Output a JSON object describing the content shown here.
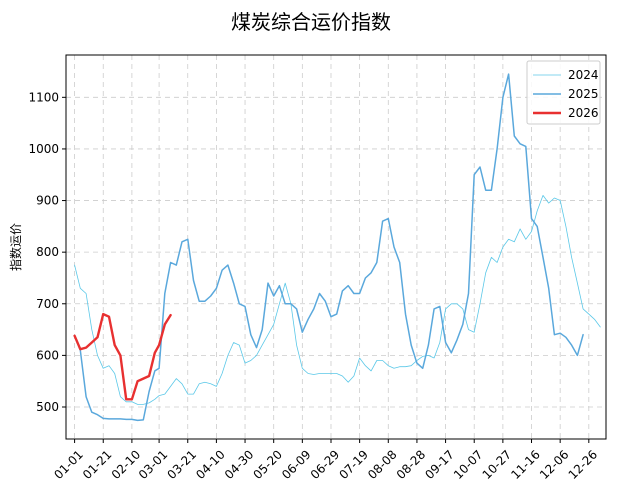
{
  "chart_data": {
    "type": "line",
    "title": "煤炭综合运价指数",
    "xlabel": "",
    "ylabel": "指数运价",
    "x_ticks": [
      "01-01",
      "01-21",
      "02-10",
      "03-01",
      "03-21",
      "04-10",
      "04-30",
      "05-20",
      "06-09",
      "06-29",
      "07-19",
      "08-08",
      "08-28",
      "09-17",
      "10-07",
      "10-27",
      "11-16",
      "12-06",
      "12-26"
    ],
    "y_ticks": [
      500,
      600,
      700,
      800,
      900,
      1000,
      1100
    ],
    "ylim": [
      438,
      1182
    ],
    "xlim_days": [
      -6,
      371
    ],
    "grid": true,
    "legend_position": "top-right",
    "colors": {
      "2024": "#5bc8e8",
      "2025": "#5aa8dc",
      "2026": "#e83030"
    },
    "series": [
      {
        "name": "2024",
        "points": [
          [
            "01-01",
            775
          ],
          [
            "01-05",
            730
          ],
          [
            "01-09",
            720
          ],
          [
            "01-13",
            650
          ],
          [
            "01-17",
            600
          ],
          [
            "01-21",
            575
          ],
          [
            "01-25",
            580
          ],
          [
            "01-29",
            565
          ],
          [
            "02-02",
            520
          ],
          [
            "02-06",
            510
          ],
          [
            "02-10",
            510
          ],
          [
            "02-14",
            505
          ],
          [
            "02-18",
            505
          ],
          [
            "02-22",
            508
          ],
          [
            "02-26",
            515
          ],
          [
            "03-01",
            522
          ],
          [
            "03-05",
            525
          ],
          [
            "03-09",
            540
          ],
          [
            "03-13",
            555
          ],
          [
            "03-17",
            545
          ],
          [
            "03-21",
            525
          ],
          [
            "03-25",
            525
          ],
          [
            "03-29",
            545
          ],
          [
            "04-02",
            548
          ],
          [
            "04-06",
            545
          ],
          [
            "04-10",
            540
          ],
          [
            "04-14",
            565
          ],
          [
            "04-18",
            600
          ],
          [
            "04-22",
            625
          ],
          [
            "04-26",
            620
          ],
          [
            "04-30",
            585
          ],
          [
            "05-04",
            590
          ],
          [
            "05-08",
            600
          ],
          [
            "05-12",
            620
          ],
          [
            "05-16",
            640
          ],
          [
            "05-20",
            660
          ],
          [
            "05-24",
            700
          ],
          [
            "05-28",
            740
          ],
          [
            "06-01",
            700
          ],
          [
            "06-05",
            620
          ],
          [
            "06-09",
            575
          ],
          [
            "06-13",
            565
          ],
          [
            "06-17",
            563
          ],
          [
            "06-21",
            565
          ],
          [
            "06-25",
            565
          ],
          [
            "06-29",
            565
          ],
          [
            "07-03",
            565
          ],
          [
            "07-07",
            560
          ],
          [
            "07-11",
            548
          ],
          [
            "07-15",
            560
          ],
          [
            "07-19",
            595
          ],
          [
            "07-23",
            580
          ],
          [
            "07-27",
            570
          ],
          [
            "07-31",
            590
          ],
          [
            "08-04",
            590
          ],
          [
            "08-08",
            580
          ],
          [
            "08-12",
            575
          ],
          [
            "08-16",
            578
          ],
          [
            "08-20",
            578
          ],
          [
            "08-24",
            580
          ],
          [
            "08-28",
            590
          ],
          [
            "09-01",
            598
          ],
          [
            "09-05",
            600
          ],
          [
            "09-09",
            595
          ],
          [
            "09-13",
            625
          ],
          [
            "09-17",
            690
          ],
          [
            "09-21",
            700
          ],
          [
            "09-25",
            700
          ],
          [
            "09-29",
            690
          ],
          [
            "10-03",
            650
          ],
          [
            "10-07",
            645
          ],
          [
            "10-11",
            700
          ],
          [
            "10-15",
            760
          ],
          [
            "10-19",
            790
          ],
          [
            "10-23",
            780
          ],
          [
            "10-27",
            810
          ],
          [
            "10-31",
            825
          ],
          [
            "11-04",
            820
          ],
          [
            "11-08",
            845
          ],
          [
            "11-12",
            825
          ],
          [
            "11-16",
            840
          ],
          [
            "11-20",
            880
          ],
          [
            "11-24",
            910
          ],
          [
            "11-28",
            895
          ],
          [
            "12-02",
            905
          ],
          [
            "12-06",
            900
          ],
          [
            "12-10",
            850
          ],
          [
            "12-14",
            790
          ],
          [
            "12-18",
            740
          ],
          [
            "12-22",
            690
          ],
          [
            "12-26",
            680
          ],
          [
            "12-30",
            670
          ],
          [
            "01-03",
            655
          ]
        ]
      },
      {
        "name": "2025",
        "points": [
          [
            "01-01",
            638
          ],
          [
            "01-05",
            610
          ],
          [
            "01-09",
            520
          ],
          [
            "01-13",
            490
          ],
          [
            "01-17",
            485
          ],
          [
            "01-21",
            478
          ],
          [
            "01-25",
            477
          ],
          [
            "01-29",
            477
          ],
          [
            "02-02",
            477
          ],
          [
            "02-06",
            476
          ],
          [
            "02-10",
            476
          ],
          [
            "02-14",
            474
          ],
          [
            "02-18",
            475
          ],
          [
            "02-22",
            530
          ],
          [
            "02-26",
            570
          ],
          [
            "03-01",
            575
          ],
          [
            "03-05",
            720
          ],
          [
            "03-09",
            780
          ],
          [
            "03-13",
            775
          ],
          [
            "03-17",
            820
          ],
          [
            "03-21",
            825
          ],
          [
            "03-25",
            745
          ],
          [
            "03-29",
            705
          ],
          [
            "04-02",
            705
          ],
          [
            "04-06",
            715
          ],
          [
            "04-10",
            730
          ],
          [
            "04-14",
            765
          ],
          [
            "04-18",
            775
          ],
          [
            "04-22",
            740
          ],
          [
            "04-26",
            700
          ],
          [
            "04-30",
            695
          ],
          [
            "05-04",
            640
          ],
          [
            "05-08",
            615
          ],
          [
            "05-12",
            650
          ],
          [
            "05-16",
            740
          ],
          [
            "05-20",
            715
          ],
          [
            "05-24",
            735
          ],
          [
            "05-28",
            700
          ],
          [
            "06-01",
            700
          ],
          [
            "06-05",
            690
          ],
          [
            "06-09",
            645
          ],
          [
            "06-13",
            670
          ],
          [
            "06-17",
            690
          ],
          [
            "06-21",
            720
          ],
          [
            "06-25",
            705
          ],
          [
            "06-29",
            675
          ],
          [
            "07-03",
            680
          ],
          [
            "07-07",
            725
          ],
          [
            "07-11",
            735
          ],
          [
            "07-15",
            720
          ],
          [
            "07-19",
            720
          ],
          [
            "07-23",
            750
          ],
          [
            "07-27",
            760
          ],
          [
            "07-31",
            780
          ],
          [
            "08-04",
            860
          ],
          [
            "08-08",
            865
          ],
          [
            "08-12",
            810
          ],
          [
            "08-16",
            780
          ],
          [
            "08-20",
            680
          ],
          [
            "08-24",
            620
          ],
          [
            "08-28",
            585
          ],
          [
            "09-01",
            575
          ],
          [
            "09-05",
            620
          ],
          [
            "09-09",
            690
          ],
          [
            "09-13",
            695
          ],
          [
            "09-17",
            625
          ],
          [
            "09-21",
            605
          ],
          [
            "09-25",
            630
          ],
          [
            "09-29",
            660
          ],
          [
            "10-03",
            720
          ],
          [
            "10-07",
            950
          ],
          [
            "10-11",
            965
          ],
          [
            "10-15",
            920
          ],
          [
            "10-19",
            920
          ],
          [
            "10-23",
            1000
          ],
          [
            "10-27",
            1100
          ],
          [
            "10-31",
            1145
          ],
          [
            "11-04",
            1025
          ],
          [
            "11-08",
            1010
          ],
          [
            "11-12",
            1005
          ],
          [
            "11-16",
            865
          ],
          [
            "11-20",
            850
          ],
          [
            "11-24",
            790
          ],
          [
            "11-28",
            730
          ],
          [
            "12-02",
            640
          ],
          [
            "12-06",
            643
          ],
          [
            "12-10",
            635
          ],
          [
            "12-14",
            620
          ],
          [
            "12-18",
            600
          ],
          [
            "12-22",
            640
          ]
        ]
      },
      {
        "name": "2026",
        "points": [
          [
            "01-01",
            638
          ],
          [
            "01-05",
            612
          ],
          [
            "01-09",
            615
          ],
          [
            "01-13",
            625
          ],
          [
            "01-17",
            635
          ],
          [
            "01-21",
            680
          ],
          [
            "01-25",
            675
          ],
          [
            "01-29",
            620
          ],
          [
            "02-02",
            600
          ],
          [
            "02-06",
            515
          ],
          [
            "02-10",
            515
          ],
          [
            "02-14",
            550
          ],
          [
            "02-18",
            555
          ],
          [
            "02-22",
            560
          ],
          [
            "02-26",
            605
          ],
          [
            "03-01",
            620
          ],
          [
            "03-05",
            660
          ],
          [
            "03-09",
            678
          ]
        ]
      }
    ]
  }
}
